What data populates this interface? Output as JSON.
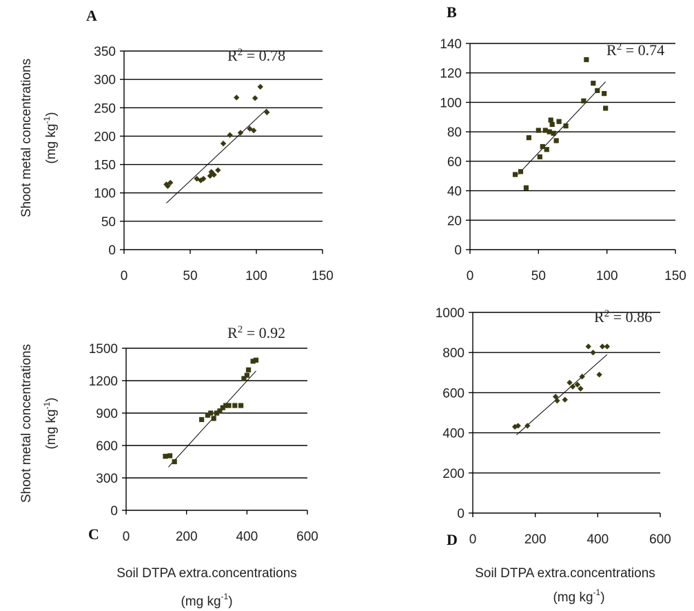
{
  "figure": {
    "ylabel_line1": "Shoot metal concentrations",
    "ylabel_line2_prefix": "(mg kg",
    "ylabel_sup": "-1",
    "ylabel_suffix": ")",
    "xlabel_line1": "Soil DTPA extra.concentrations",
    "xlabel_line2_prefix": "(mg kg",
    "xlabel_sup": "-1",
    "xlabel_suffix": ")",
    "marker_color": "#3a3a10"
  },
  "chart_data": [
    {
      "type": "scatter",
      "panel": "A",
      "r2_prefix": "R",
      "r2_sup": "2",
      "r2_value": " = 0.78",
      "xlim": [
        0,
        150
      ],
      "ylim": [
        0,
        350
      ],
      "xticks": [
        0,
        50,
        100,
        150
      ],
      "yticks": [
        0,
        50,
        100,
        150,
        200,
        250,
        300,
        350
      ],
      "grid": "horizontal",
      "marker": "diamond",
      "trendline": {
        "x": [
          32,
          108
        ],
        "y": [
          82,
          248
        ]
      },
      "points": [
        [
          32,
          115
        ],
        [
          33,
          112
        ],
        [
          35,
          118
        ],
        [
          55,
          125
        ],
        [
          58,
          122
        ],
        [
          60,
          125
        ],
        [
          65,
          130
        ],
        [
          66,
          137
        ],
        [
          68,
          132
        ],
        [
          71,
          140
        ],
        [
          75,
          187
        ],
        [
          80,
          202
        ],
        [
          85,
          268
        ],
        [
          88,
          206
        ],
        [
          95,
          213
        ],
        [
          98,
          210
        ],
        [
          99,
          267
        ],
        [
          103,
          287
        ],
        [
          108,
          242
        ]
      ]
    },
    {
      "type": "scatter",
      "panel": "B",
      "r2_prefix": "R",
      "r2_sup": "2",
      "r2_value": " = 0.74",
      "xlim": [
        0,
        150
      ],
      "ylim": [
        0,
        140
      ],
      "xticks": [
        0,
        50,
        100,
        150
      ],
      "yticks": [
        0,
        20,
        40,
        60,
        80,
        100,
        120,
        140
      ],
      "grid": "horizontal",
      "marker": "square",
      "trendline": {
        "x": [
          35,
          99
        ],
        "y": [
          51,
          114
        ]
      },
      "points": [
        [
          33,
          51
        ],
        [
          37,
          53
        ],
        [
          41,
          42
        ],
        [
          43,
          76
        ],
        [
          50,
          81
        ],
        [
          51,
          63
        ],
        [
          53,
          70
        ],
        [
          55,
          81
        ],
        [
          56,
          68
        ],
        [
          58,
          80
        ],
        [
          59,
          88
        ],
        [
          60,
          85
        ],
        [
          61,
          79
        ],
        [
          63,
          74
        ],
        [
          65,
          87
        ],
        [
          70,
          84
        ],
        [
          83,
          101
        ],
        [
          85,
          129
        ],
        [
          90,
          113
        ],
        [
          93,
          108
        ],
        [
          98,
          106
        ],
        [
          99,
          96
        ]
      ]
    },
    {
      "type": "scatter",
      "panel": "C",
      "r2_prefix": "R",
      "r2_sup": "2",
      "r2_value": " = 0.92",
      "xlim": [
        0,
        600
      ],
      "ylim": [
        0,
        1500
      ],
      "xticks": [
        0,
        200,
        400,
        600
      ],
      "yticks": [
        0,
        300,
        600,
        900,
        1200,
        1500
      ],
      "grid": "horizontal",
      "marker": "square",
      "trendline": {
        "x": [
          140,
          430
        ],
        "y": [
          400,
          1290
        ]
      },
      "points": [
        [
          130,
          500
        ],
        [
          145,
          505
        ],
        [
          160,
          450
        ],
        [
          250,
          840
        ],
        [
          270,
          880
        ],
        [
          280,
          900
        ],
        [
          290,
          850
        ],
        [
          300,
          900
        ],
        [
          310,
          920
        ],
        [
          320,
          950
        ],
        [
          330,
          970
        ],
        [
          340,
          970
        ],
        [
          360,
          970
        ],
        [
          380,
          970
        ],
        [
          390,
          1220
        ],
        [
          400,
          1250
        ],
        [
          405,
          1300
        ],
        [
          420,
          1380
        ],
        [
          430,
          1390
        ]
      ]
    },
    {
      "type": "scatter",
      "panel": "D",
      "r2_prefix": "R",
      "r2_sup": "2",
      "r2_value": " = 0.86",
      "xlim": [
        0,
        600
      ],
      "ylim": [
        0,
        1000
      ],
      "xticks": [
        0,
        200,
        400,
        600
      ],
      "yticks": [
        0,
        200,
        400,
        600,
        800,
        1000
      ],
      "grid": "horizontal",
      "marker": "diamond",
      "trendline": {
        "x": [
          140,
          430
        ],
        "y": [
          390,
          790
        ]
      },
      "points": [
        [
          135,
          430
        ],
        [
          145,
          435
        ],
        [
          175,
          435
        ],
        [
          265,
          580
        ],
        [
          270,
          560
        ],
        [
          295,
          565
        ],
        [
          310,
          650
        ],
        [
          320,
          630
        ],
        [
          335,
          640
        ],
        [
          345,
          620
        ],
        [
          350,
          680
        ],
        [
          370,
          830
        ],
        [
          385,
          800
        ],
        [
          405,
          690
        ],
        [
          415,
          830
        ],
        [
          430,
          830
        ]
      ]
    }
  ]
}
